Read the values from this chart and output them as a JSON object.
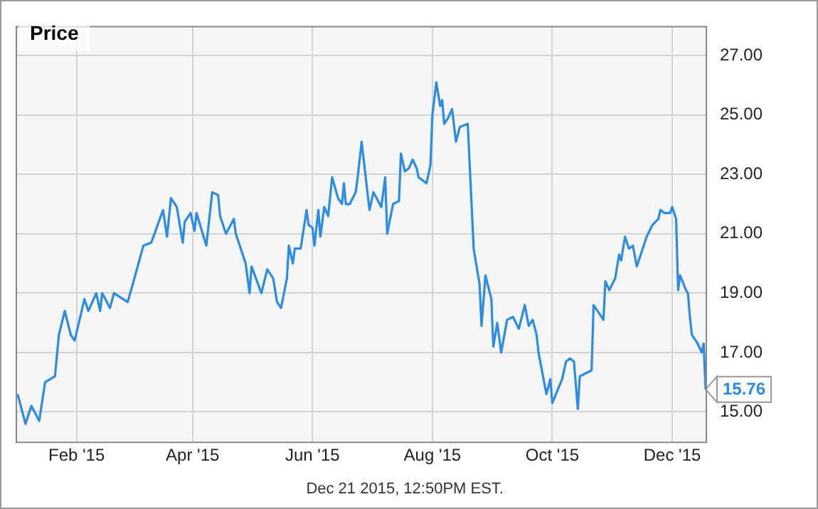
{
  "chart_data": {
    "type": "line",
    "title": "Price",
    "annotations": [
      "Dec 21 2015, 12:50PM EST."
    ],
    "x": [
      "2015-01-02",
      "2015-01-06",
      "2015-01-09",
      "2015-01-13",
      "2015-01-16",
      "2015-01-21",
      "2015-01-23",
      "2015-01-26",
      "2015-01-29",
      "2015-01-31",
      "2015-02-05",
      "2015-02-07",
      "2015-02-11",
      "2015-02-13",
      "2015-02-14",
      "2015-02-18",
      "2015-02-20",
      "2015-02-27",
      "2015-03-02",
      "2015-03-07",
      "2015-03-11",
      "2015-03-17",
      "2015-03-19",
      "2015-03-21",
      "2015-03-24",
      "2015-03-27",
      "2015-03-28",
      "2015-03-31",
      "2015-04-02",
      "2015-04-03",
      "2015-04-08",
      "2015-04-11",
      "2015-04-14",
      "2015-04-15",
      "2015-04-18",
      "2015-04-22",
      "2015-04-23",
      "2015-04-28",
      "2015-04-30",
      "2015-05-01",
      "2015-05-06",
      "2015-05-09",
      "2015-05-12",
      "2015-05-14",
      "2015-05-16",
      "2015-05-19",
      "2015-05-20",
      "2015-05-22",
      "2015-05-23",
      "2015-05-26",
      "2015-05-29",
      "2015-05-30",
      "2015-06-01",
      "2015-06-02",
      "2015-06-04",
      "2015-06-05",
      "2015-06-07",
      "2015-06-09",
      "2015-06-11",
      "2015-06-14",
      "2015-06-16",
      "2015-06-17",
      "2015-06-18",
      "2015-06-20",
      "2015-06-23",
      "2015-06-24",
      "2015-06-26",
      "2015-06-30",
      "2015-07-02",
      "2015-07-06",
      "2015-07-08",
      "2015-07-09",
      "2015-07-12",
      "2015-07-15",
      "2015-07-16",
      "2015-07-18",
      "2015-07-20",
      "2015-07-22",
      "2015-07-24",
      "2015-07-25",
      "2015-07-29",
      "2015-07-31",
      "2015-08-01",
      "2015-08-03",
      "2015-08-05",
      "2015-08-06",
      "2015-08-07",
      "2015-08-09",
      "2015-08-11",
      "2015-08-13",
      "2015-08-15",
      "2015-08-19",
      "2015-08-22",
      "2015-08-25",
      "2015-08-26",
      "2015-08-28",
      "2015-08-31",
      "2015-09-01",
      "2015-09-03",
      "2015-09-05",
      "2015-09-08",
      "2015-09-11",
      "2015-09-14",
      "2015-09-17",
      "2015-09-19",
      "2015-09-21",
      "2015-09-23",
      "2015-09-24",
      "2015-09-28",
      "2015-09-30",
      "2015-10-01",
      "2015-10-06",
      "2015-10-08",
      "2015-10-10",
      "2015-10-12",
      "2015-10-14",
      "2015-10-15",
      "2015-10-21",
      "2015-10-22",
      "2015-10-27",
      "2015-10-28",
      "2015-10-30",
      "2015-11-02",
      "2015-11-04",
      "2015-11-05",
      "2015-11-07",
      "2015-11-09",
      "2015-11-11",
      "2015-11-13",
      "2015-11-16",
      "2015-11-18",
      "2015-11-21",
      "2015-11-24",
      "2015-11-25",
      "2015-11-27",
      "2015-11-30",
      "2015-12-01",
      "2015-12-03",
      "2015-12-04",
      "2015-12-05",
      "2015-12-08",
      "2015-12-09",
      "2015-12-10",
      "2015-12-11",
      "2015-12-14",
      "2015-12-16",
      "2015-12-17",
      "2015-12-18"
    ],
    "series": [
      {
        "color": "#2b8be6",
        "values": [
          15.6,
          14.6,
          15.2,
          14.7,
          16.0,
          16.2,
          17.6,
          18.4,
          17.6,
          17.4,
          18.8,
          18.4,
          19.0,
          18.4,
          19.0,
          18.5,
          19.0,
          18.7,
          19.4,
          20.6,
          20.7,
          21.8,
          20.9,
          22.2,
          21.9,
          20.7,
          21.4,
          21.7,
          21.1,
          21.7,
          20.6,
          22.4,
          22.3,
          21.6,
          21.0,
          21.5,
          21.0,
          20.0,
          19.0,
          19.9,
          19.0,
          19.8,
          19.5,
          18.7,
          18.5,
          19.5,
          20.6,
          20.0,
          20.5,
          20.5,
          21.8,
          21.3,
          21.2,
          20.6,
          21.8,
          20.9,
          21.9,
          21.6,
          22.9,
          22.2,
          22.0,
          22.7,
          22.0,
          22.0,
          22.4,
          22.9,
          24.1,
          21.8,
          22.4,
          21.9,
          22.9,
          21.0,
          22.0,
          22.1,
          23.7,
          23.1,
          23.2,
          23.5,
          23.2,
          22.9,
          22.7,
          23.3,
          25.0,
          26.1,
          25.3,
          25.5,
          24.7,
          24.9,
          25.2,
          24.1,
          24.6,
          24.7,
          20.5,
          19.3,
          17.9,
          19.6,
          18.8,
          17.2,
          18.0,
          17.0,
          18.1,
          18.2,
          17.8,
          18.6,
          17.9,
          18.1,
          17.6,
          17.0,
          15.6,
          16.1,
          15.3,
          16.1,
          16.7,
          16.8,
          16.7,
          15.1,
          16.2,
          16.4,
          18.6,
          18.1,
          19.4,
          19.1,
          19.5,
          20.3,
          20.1,
          20.9,
          20.5,
          20.6,
          19.9,
          20.5,
          20.9,
          21.3,
          21.5,
          21.8,
          21.7,
          21.7,
          21.9,
          21.5,
          19.1,
          19.6,
          19.1,
          19.0,
          18.2,
          17.6,
          17.3,
          17.0,
          17.3,
          15.76
        ],
        "value_labels": [
          null,
          null,
          null,
          null,
          null,
          null,
          null,
          null,
          null,
          null,
          null,
          null,
          null,
          null,
          null,
          null,
          null,
          null,
          null,
          null,
          null,
          null,
          null,
          null,
          null,
          null,
          null,
          null,
          null,
          null,
          null,
          null,
          null,
          null,
          null,
          null,
          null,
          null,
          null,
          null,
          null,
          null,
          null,
          null,
          null,
          null,
          null,
          null,
          null,
          null,
          null,
          null,
          null,
          null,
          null,
          null,
          null,
          null,
          null,
          null,
          null,
          null,
          null,
          null,
          null,
          null,
          null,
          null,
          null,
          null,
          null,
          null,
          null,
          null,
          null,
          null,
          null,
          null,
          null,
          null,
          null,
          null,
          null,
          null,
          null,
          null,
          null,
          null,
          null,
          null,
          null,
          null,
          null,
          null,
          null,
          null,
          null,
          null,
          null,
          null,
          null,
          null,
          null,
          null,
          null,
          null,
          null,
          null,
          null,
          null,
          null,
          null,
          null,
          null,
          null,
          null,
          null,
          null,
          null,
          null,
          null,
          null,
          null,
          null,
          null,
          null,
          null,
          null,
          null,
          null,
          null,
          null,
          null,
          null,
          null,
          null,
          null,
          null,
          null,
          null,
          null,
          null,
          null,
          null,
          null,
          null,
          null,
          "15.76"
        ]
      }
    ],
    "xlim": [
      "2015-01-01",
      "2015-12-18"
    ],
    "xticks": [
      {
        "value": "2015-02-01",
        "label": "Feb '15"
      },
      {
        "value": "2015-04-01",
        "label": "Apr '15"
      },
      {
        "value": "2015-06-01",
        "label": "Jun '15"
      },
      {
        "value": "2015-08-01",
        "label": "Aug '15"
      },
      {
        "value": "2015-10-01",
        "label": "Oct '15"
      },
      {
        "value": "2015-12-01",
        "label": "Dec '15"
      }
    ],
    "ylim": [
      14,
      28
    ],
    "yticks": [
      {
        "value": 15,
        "label": "15.00"
      },
      {
        "value": 17,
        "label": "17.00"
      },
      {
        "value": 19,
        "label": "19.00"
      },
      {
        "value": 21,
        "label": "21.00"
      },
      {
        "value": 23,
        "label": "23.00"
      },
      {
        "value": 25,
        "label": "25.00"
      },
      {
        "value": 27,
        "label": "27.00"
      }
    ],
    "grid": true,
    "legend": false,
    "marker": "none",
    "line_style": "solid"
  }
}
